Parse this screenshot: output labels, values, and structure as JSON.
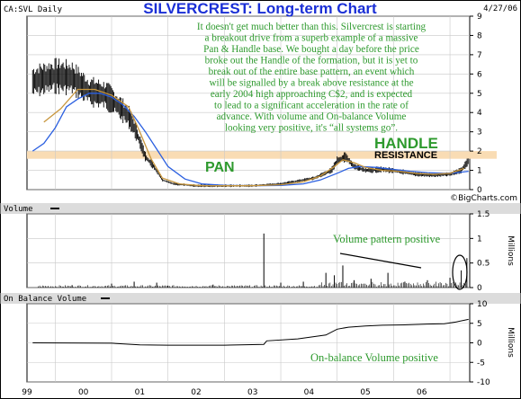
{
  "header": {
    "symbol_label": "CA:SVL Daily",
    "title": "SILVERCREST: Long-term Chart",
    "date": "4/27/06",
    "watermark": "©BigCharts.com"
  },
  "annotation": {
    "lines": [
      "It doesn't get much better than this. Silvercrest is starting",
      "a breakout drive from a superb example of a massive",
      "Pan & Handle base. We bought a day before the price",
      "broke out the Handle of the formation, but it is yet to",
      "break out of the entire base pattern, an event which",
      "will be signalled by a break above resistance at the",
      "early 2004 high approaching C$2, and is expected",
      "to lead to a significant acceleration in the rate of",
      "advance. With volume and On-balance Volume",
      "looking very positive, it's “all systems go”."
    ],
    "pan_label": "PAN",
    "handle_label": "HANDLE",
    "resistance_label": "RESISTANCE",
    "volume_note": "Volume pattern positive",
    "obv_note": "On-balance Volume positive"
  },
  "colors": {
    "title": "#1a2fd6",
    "annotation_text": "#2e9a2e",
    "resistance_band": "#f9dcb4",
    "moving_average_short": "#c8963c",
    "moving_average_long": "#2a5fe0",
    "price_bars": "#000000",
    "panel_label_bg": "#dcdcdc"
  },
  "chart_data": [
    {
      "type": "bar",
      "panel": "price",
      "x_tick_labels": [
        "99",
        "00",
        "01",
        "02",
        "03",
        "04",
        "05",
        "06"
      ],
      "y_ticks": [
        0,
        1,
        2,
        3,
        4,
        5,
        6,
        7,
        8,
        9
      ],
      "ylim": [
        0,
        9
      ],
      "resistance_band": [
        1.6,
        2.0
      ],
      "grid": true,
      "series": [
        {
          "name": "",
          "kind": "price",
          "x": [
            1998.6,
            1999.0,
            1999.3,
            1999.6,
            1999.9,
            2000.1,
            2000.3,
            2000.45,
            2000.6,
            2000.75,
            2000.9,
            2001.1,
            2001.5,
            2002.0,
            2002.5,
            2003.0,
            2003.3,
            2003.6,
            2003.9,
            2004.0,
            2004.15,
            2004.3,
            2004.5,
            2004.8,
            2005.1,
            2005.4,
            2005.7,
            2006.0,
            2006.2,
            2006.33
          ],
          "y": [
            5.6,
            5.9,
            5.8,
            5.1,
            4.9,
            4.4,
            3.8,
            2.9,
            1.7,
            1.2,
            0.5,
            0.3,
            0.2,
            0.2,
            0.2,
            0.3,
            0.45,
            0.6,
            1.0,
            1.5,
            1.7,
            1.2,
            1.0,
            1.05,
            0.95,
            0.8,
            0.75,
            0.8,
            1.0,
            1.5
          ]
        },
        {
          "name": "",
          "kind": "ma_short",
          "x": [
            1998.8,
            1999.1,
            1999.4,
            1999.7,
            2000.0,
            2000.3,
            2000.5,
            2000.7,
            2000.9,
            2001.2,
            2001.6,
            2002.0,
            2002.5,
            2003.0,
            2003.4,
            2003.7,
            2003.95,
            2004.1,
            2004.3,
            2004.5,
            2004.8,
            2005.1,
            2005.4,
            2005.7,
            2006.0,
            2006.25
          ],
          "y": [
            3.5,
            4.2,
            5.2,
            5.2,
            4.9,
            4.3,
            3.0,
            1.6,
            0.6,
            0.3,
            0.2,
            0.2,
            0.2,
            0.25,
            0.4,
            0.7,
            1.2,
            1.55,
            1.4,
            1.15,
            1.0,
            0.95,
            0.85,
            0.8,
            0.85,
            1.1
          ]
        },
        {
          "name": "",
          "kind": "ma_long",
          "x": [
            1998.6,
            1998.8,
            1999.0,
            1999.2,
            1999.4,
            1999.6,
            1999.8,
            2000.0,
            2000.2,
            2000.4,
            2000.6,
            2000.8,
            2001.0,
            2001.3,
            2001.6,
            2002.0,
            2002.5,
            2003.0,
            2003.4,
            2003.7,
            2004.0,
            2004.2,
            2004.4,
            2004.7,
            2005.0,
            2005.3,
            2005.6,
            2005.9,
            2006.1,
            2006.33
          ],
          "y": [
            2.0,
            2.4,
            3.2,
            4.3,
            4.7,
            5.0,
            5.0,
            4.8,
            4.4,
            3.8,
            3.0,
            2.1,
            1.2,
            0.55,
            0.3,
            0.22,
            0.2,
            0.22,
            0.3,
            0.5,
            0.85,
            1.1,
            1.2,
            1.15,
            1.05,
            0.95,
            0.88,
            0.85,
            0.87,
            0.95
          ]
        }
      ]
    },
    {
      "type": "bar",
      "panel": "volume",
      "title": "Volume",
      "units": "Millions",
      "y_ticks": [
        0,
        0.5,
        1,
        1.5
      ],
      "ylim": [
        0,
        1.5
      ],
      "x": [
        1999.3,
        2000.0,
        2000.4,
        2000.8,
        2001.0,
        2001.8,
        2002.7,
        2003.0,
        2003.4,
        2003.8,
        2003.95,
        2004.1,
        2004.3,
        2004.6,
        2004.9,
        2005.2,
        2005.6,
        2006.0,
        2006.2,
        2006.3
      ],
      "values": [
        0.05,
        0.08,
        0.12,
        0.1,
        0.04,
        0.06,
        1.1,
        0.1,
        0.12,
        0.3,
        0.25,
        0.45,
        0.15,
        0.18,
        0.3,
        0.12,
        0.15,
        0.2,
        0.35,
        0.6
      ]
    },
    {
      "type": "line",
      "panel": "obv",
      "title": "On Balance Volume",
      "units": "Millions",
      "y_ticks": [
        -10,
        -5,
        0,
        5,
        10
      ],
      "ylim": [
        -10,
        10
      ],
      "x": [
        1998.6,
        2000.0,
        2000.5,
        2001.0,
        2002.0,
        2002.7,
        2002.75,
        2003.3,
        2003.8,
        2004.0,
        2004.2,
        2004.5,
        2004.8,
        2005.2,
        2005.6,
        2005.9,
        2006.1,
        2006.33
      ],
      "values": [
        0.0,
        -0.1,
        -0.5,
        -0.6,
        -0.6,
        -0.4,
        0.5,
        1.0,
        2.0,
        3.5,
        4.0,
        4.3,
        4.5,
        4.6,
        4.8,
        4.9,
        5.3,
        6.0
      ]
    }
  ]
}
